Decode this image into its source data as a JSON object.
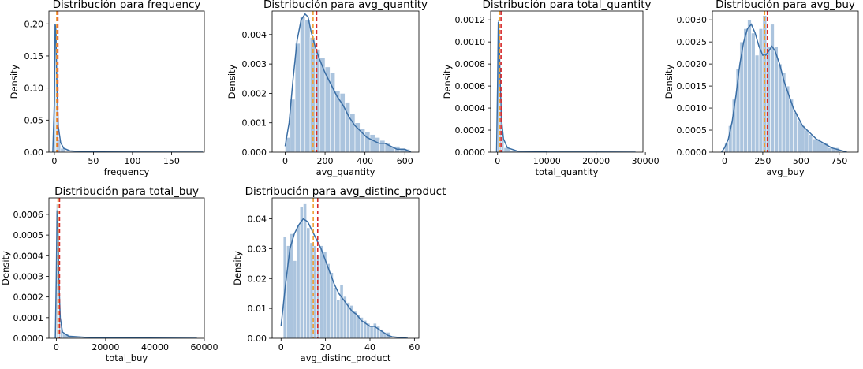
{
  "colors": {
    "bar": "#8fb0d3",
    "kde": "#3a6ea5",
    "median_line": "#f0a030",
    "mean_line": "#d62728",
    "axis": "#000000"
  },
  "chart_data": [
    {
      "type": "bar",
      "title": "Distribución para frequency",
      "xlabel": "frequency",
      "ylabel": "Density",
      "xlim": [
        -7,
        192
      ],
      "ylim": [
        0,
        0.22
      ],
      "xticks": [
        0,
        50,
        100,
        150
      ],
      "yticks": [
        0.0,
        0.05,
        0.1,
        0.15,
        0.2
      ],
      "ytick_labels": [
        "0.00",
        "0.05",
        "0.10",
        "0.15",
        "0.20"
      ],
      "bins": [
        [
          0,
          1.5,
          0.2
        ],
        [
          1.5,
          3,
          0.16
        ],
        [
          3,
          5,
          0.05
        ],
        [
          5,
          8,
          0.02
        ],
        [
          8,
          14,
          0.006
        ],
        [
          14,
          30,
          0.001
        ]
      ],
      "kde": [
        [
          -2,
          0.0
        ],
        [
          0,
          0.08
        ],
        [
          1,
          0.2
        ],
        [
          2,
          0.19
        ],
        [
          3,
          0.12
        ],
        [
          5,
          0.04
        ],
        [
          8,
          0.015
        ],
        [
          12,
          0.006
        ],
        [
          20,
          0.002
        ],
        [
          40,
          0.0005
        ],
        [
          100,
          0.0001
        ],
        [
          190,
          0.0
        ]
      ],
      "median": 3,
      "mean": 4.5
    },
    {
      "type": "bar",
      "title": "Distribución para avg_quantity",
      "xlabel": "avg_quantity",
      "ylabel": "Density",
      "xlim": [
        -65,
        670
      ],
      "ylim": [
        0,
        0.0048
      ],
      "xticks": [
        0,
        200,
        400,
        600
      ],
      "yticks": [
        0.0,
        0.001,
        0.002,
        0.003,
        0.004
      ],
      "ytick_labels": [
        "0.000",
        "0.001",
        "0.002",
        "0.003",
        "0.004"
      ],
      "bins": [
        [
          0,
          25,
          0.0005
        ],
        [
          25,
          50,
          0.0018
        ],
        [
          50,
          75,
          0.0037
        ],
        [
          75,
          100,
          0.0046
        ],
        [
          100,
          125,
          0.0045
        ],
        [
          125,
          150,
          0.0039
        ],
        [
          150,
          175,
          0.0035
        ],
        [
          175,
          200,
          0.0032
        ],
        [
          200,
          225,
          0.0029
        ],
        [
          225,
          250,
          0.0027
        ],
        [
          250,
          275,
          0.0021
        ],
        [
          275,
          300,
          0.002
        ],
        [
          300,
          325,
          0.0017
        ],
        [
          325,
          350,
          0.0013
        ],
        [
          350,
          375,
          0.001
        ],
        [
          375,
          400,
          0.0008
        ],
        [
          400,
          425,
          0.0007
        ],
        [
          425,
          450,
          0.0006
        ],
        [
          450,
          475,
          0.0005
        ],
        [
          475,
          500,
          0.0004
        ],
        [
          500,
          525,
          0.0003
        ],
        [
          525,
          550,
          0.0002
        ],
        [
          550,
          575,
          0.0002
        ],
        [
          575,
          600,
          0.0001
        ],
        [
          600,
          625,
          0.0001
        ]
      ],
      "kde": [
        [
          0,
          0.0002
        ],
        [
          20,
          0.001
        ],
        [
          40,
          0.0025
        ],
        [
          60,
          0.0038
        ],
        [
          80,
          0.0045
        ],
        [
          100,
          0.0047
        ],
        [
          115,
          0.0046
        ],
        [
          130,
          0.0041
        ],
        [
          150,
          0.0036
        ],
        [
          170,
          0.0032
        ],
        [
          200,
          0.0027
        ],
        [
          230,
          0.0023
        ],
        [
          260,
          0.0019
        ],
        [
          290,
          0.0016
        ],
        [
          320,
          0.0012
        ],
        [
          350,
          0.0009
        ],
        [
          380,
          0.0007
        ],
        [
          410,
          0.0005
        ],
        [
          440,
          0.0004
        ],
        [
          470,
          0.0003
        ],
        [
          500,
          0.0003
        ],
        [
          530,
          0.0002
        ],
        [
          560,
          0.0001
        ],
        [
          600,
          0.0001
        ],
        [
          630,
          0.0
        ]
      ],
      "median": 140,
      "mean": 158
    },
    {
      "type": "bar",
      "title": "Distribución para total_quantity",
      "xlabel": "total_quantity",
      "ylabel": "Density",
      "xlim": [
        -1400,
        29500
      ],
      "ylim": [
        0,
        0.00128
      ],
      "xticks": [
        0,
        10000,
        20000,
        30000
      ],
      "yticks": [
        0.0,
        0.0002,
        0.0004,
        0.0006,
        0.0008,
        0.001,
        0.0012
      ],
      "ytick_labels": [
        "0.0000",
        "0.0002",
        "0.0004",
        "0.0006",
        "0.0008",
        "0.0010",
        "0.0012"
      ],
      "bins": [
        [
          0,
          250,
          0.0012
        ],
        [
          250,
          500,
          0.001
        ],
        [
          500,
          800,
          0.0004
        ],
        [
          800,
          1300,
          0.00012
        ],
        [
          1300,
          2500,
          4e-05
        ],
        [
          2500,
          5000,
          1e-05
        ]
      ],
      "kde": [
        [
          -200,
          0.0
        ],
        [
          0,
          0.0006
        ],
        [
          150,
          0.00118
        ],
        [
          300,
          0.0011
        ],
        [
          500,
          0.0007
        ],
        [
          800,
          0.0003
        ],
        [
          1200,
          0.00012
        ],
        [
          2000,
          4e-05
        ],
        [
          4000,
          1e-05
        ],
        [
          10000,
          2e-06
        ],
        [
          28000,
          0.0
        ]
      ],
      "median": 400,
      "mean": 700
    },
    {
      "type": "bar",
      "title": "Distribución para avg_buy",
      "xlabel": "avg_buy",
      "ylabel": "Density",
      "xlim": [
        -80,
        875
      ],
      "ylim": [
        0,
        0.0032
      ],
      "xticks": [
        0,
        250,
        500,
        750
      ],
      "yticks": [
        0.0,
        0.0005,
        0.001,
        0.0015,
        0.002,
        0.0025,
        0.003
      ],
      "ytick_labels": [
        "0.0000",
        "0.0005",
        "0.0010",
        "0.0015",
        "0.0020",
        "0.0025",
        "0.0030"
      ],
      "bins": [
        [
          0,
          25,
          0.0002
        ],
        [
          25,
          50,
          0.0006
        ],
        [
          50,
          75,
          0.0012
        ],
        [
          75,
          100,
          0.0019
        ],
        [
          100,
          125,
          0.0025
        ],
        [
          125,
          150,
          0.0028
        ],
        [
          150,
          175,
          0.003
        ],
        [
          175,
          200,
          0.0027
        ],
        [
          200,
          225,
          0.0022
        ],
        [
          225,
          250,
          0.0028
        ],
        [
          250,
          275,
          0.0031
        ],
        [
          275,
          300,
          0.0024
        ],
        [
          300,
          325,
          0.0029
        ],
        [
          325,
          350,
          0.0024
        ],
        [
          350,
          375,
          0.002
        ],
        [
          375,
          400,
          0.0018
        ],
        [
          400,
          425,
          0.0015
        ],
        [
          425,
          450,
          0.0012
        ],
        [
          450,
          475,
          0.0009
        ],
        [
          475,
          500,
          0.0007
        ],
        [
          500,
          525,
          0.0006
        ],
        [
          525,
          550,
          0.0005
        ],
        [
          550,
          575,
          0.0004
        ],
        [
          575,
          600,
          0.0003
        ],
        [
          600,
          625,
          0.0003
        ],
        [
          625,
          650,
          0.0002
        ],
        [
          650,
          675,
          0.0002
        ],
        [
          675,
          700,
          0.0001
        ],
        [
          700,
          725,
          0.0001
        ],
        [
          725,
          750,
          0.0001
        ]
      ],
      "kde": [
        [
          -20,
          0.0
        ],
        [
          0,
          0.0001
        ],
        [
          25,
          0.0003
        ],
        [
          50,
          0.0007
        ],
        [
          75,
          0.0013
        ],
        [
          100,
          0.002
        ],
        [
          125,
          0.0025
        ],
        [
          150,
          0.0028
        ],
        [
          175,
          0.0029
        ],
        [
          200,
          0.0027
        ],
        [
          225,
          0.0024
        ],
        [
          250,
          0.0022
        ],
        [
          270,
          0.0022
        ],
        [
          290,
          0.0023
        ],
        [
          310,
          0.0024
        ],
        [
          330,
          0.0023
        ],
        [
          360,
          0.002
        ],
        [
          390,
          0.0016
        ],
        [
          420,
          0.0013
        ],
        [
          450,
          0.001
        ],
        [
          480,
          0.0008
        ],
        [
          510,
          0.0006
        ],
        [
          540,
          0.0005
        ],
        [
          570,
          0.0004
        ],
        [
          600,
          0.0003
        ],
        [
          650,
          0.0002
        ],
        [
          700,
          0.0001
        ],
        [
          750,
          5e-05
        ],
        [
          800,
          0.0
        ]
      ],
      "median": 262,
      "mean": 280
    },
    {
      "type": "bar",
      "title": "Distribución para total_buy",
      "xlabel": "total_buy",
      "ylabel": "Density",
      "xlim": [
        -3000,
        60000
      ],
      "ylim": [
        0,
        0.00068
      ],
      "xticks": [
        0,
        20000,
        40000,
        60000
      ],
      "yticks": [
        0.0,
        0.0001,
        0.0002,
        0.0003,
        0.0004,
        0.0005,
        0.0006
      ],
      "ytick_labels": [
        "0.0000",
        "0.0001",
        "0.0002",
        "0.0003",
        "0.0004",
        "0.0005",
        "0.0006"
      ],
      "bins": [
        [
          0,
          500,
          0.00065
        ],
        [
          500,
          1000,
          0.0005
        ],
        [
          1000,
          1600,
          0.0002
        ],
        [
          1600,
          2500,
          7e-05
        ],
        [
          2500,
          5000,
          2e-05
        ],
        [
          5000,
          10000,
          5e-06
        ]
      ],
      "kde": [
        [
          -400,
          0.0
        ],
        [
          0,
          0.0003
        ],
        [
          300,
          0.00062
        ],
        [
          600,
          0.00058
        ],
        [
          1000,
          0.0003
        ],
        [
          1600,
          0.0001
        ],
        [
          2500,
          3e-05
        ],
        [
          5000,
          1e-05
        ],
        [
          15000,
          2e-06
        ],
        [
          57000,
          0.0
        ]
      ],
      "median": 700,
      "mean": 1300
    },
    {
      "type": "bar",
      "title": "Distribución para avg_distinc_product",
      "xlabel": "avg_distinc_product",
      "ylabel": "Density",
      "xlim": [
        -4,
        62
      ],
      "ylim": [
        0,
        0.047
      ],
      "xticks": [
        0,
        20,
        40,
        60
      ],
      "yticks": [
        0.0,
        0.01,
        0.02,
        0.03,
        0.04
      ],
      "ytick_labels": [
        "0.00",
        "0.01",
        "0.02",
        "0.03",
        "0.04"
      ],
      "bins": [
        [
          1,
          2.5,
          0.034
        ],
        [
          2.5,
          4,
          0.031
        ],
        [
          4,
          5.5,
          0.035
        ],
        [
          5.5,
          7,
          0.026
        ],
        [
          7,
          8.5,
          0.038
        ],
        [
          8.5,
          10,
          0.044
        ],
        [
          10,
          11.5,
          0.045
        ],
        [
          11.5,
          13,
          0.037
        ],
        [
          13,
          14.5,
          0.032
        ],
        [
          14.5,
          16,
          0.031
        ],
        [
          16,
          17.5,
          0.028
        ],
        [
          17.5,
          19,
          0.031
        ],
        [
          19,
          20.5,
          0.029
        ],
        [
          20.5,
          22,
          0.025
        ],
        [
          22,
          23.5,
          0.022
        ],
        [
          23.5,
          25,
          0.017
        ],
        [
          25,
          26.5,
          0.013
        ],
        [
          26.5,
          28,
          0.018
        ],
        [
          28,
          29.5,
          0.014
        ],
        [
          29.5,
          31,
          0.012
        ],
        [
          31,
          32.5,
          0.011
        ],
        [
          32.5,
          34,
          0.009
        ],
        [
          34,
          35.5,
          0.008
        ],
        [
          35.5,
          37,
          0.007
        ],
        [
          37,
          38.5,
          0.006
        ],
        [
          38.5,
          40,
          0.005
        ],
        [
          40,
          41.5,
          0.004
        ],
        [
          41.5,
          43,
          0.005
        ],
        [
          43,
          44.5,
          0.004
        ],
        [
          44.5,
          46,
          0.003
        ],
        [
          46,
          47.5,
          0.002
        ],
        [
          47.5,
          49,
          0.002
        ]
      ],
      "kde": [
        [
          0,
          0.004
        ],
        [
          2,
          0.018
        ],
        [
          4,
          0.03
        ],
        [
          6,
          0.035
        ],
        [
          8,
          0.038
        ],
        [
          10,
          0.04
        ],
        [
          12,
          0.039
        ],
        [
          14,
          0.036
        ],
        [
          16,
          0.033
        ],
        [
          18,
          0.03
        ],
        [
          20,
          0.026
        ],
        [
          22,
          0.022
        ],
        [
          24,
          0.018
        ],
        [
          26,
          0.015
        ],
        [
          28,
          0.013
        ],
        [
          30,
          0.011
        ],
        [
          32,
          0.009
        ],
        [
          34,
          0.008
        ],
        [
          36,
          0.006
        ],
        [
          38,
          0.005
        ],
        [
          40,
          0.004
        ],
        [
          42,
          0.004
        ],
        [
          44,
          0.003
        ],
        [
          46,
          0.002
        ],
        [
          48,
          0.001
        ],
        [
          50,
          0.0005
        ],
        [
          54,
          0.0002
        ],
        [
          57,
          0.0
        ]
      ],
      "median": 14.5,
      "mean": 16.5
    }
  ]
}
